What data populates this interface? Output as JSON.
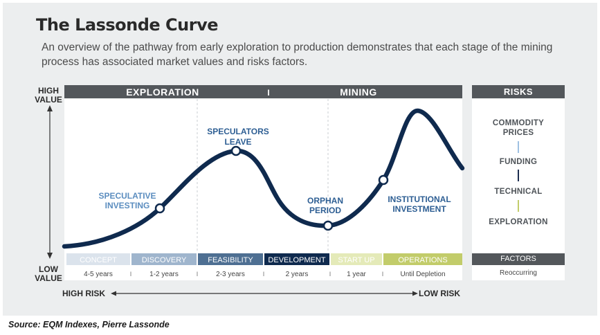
{
  "title": "The Lassonde Curve",
  "subtitle": "An overview of the pathway from early exploration to production demonstrates that each stage of the mining process has associated market values and risks factors.",
  "axis": {
    "high_value": [
      "HIGH",
      "VALUE"
    ],
    "low_value": [
      "LOW",
      "VALUE"
    ],
    "high_risk": "HIGH RISK",
    "low_risk": "LOW RISK"
  },
  "phases": {
    "exploration": "EXPLORATION",
    "divider": "I",
    "mining": "MINING"
  },
  "annotations": {
    "speculative_investing": [
      "SPECULATIVE",
      "INVESTING"
    ],
    "speculators_leave": [
      "SPECULATORS",
      "LEAVE"
    ],
    "orphan_period": [
      "ORPHAN",
      "PERIOD"
    ],
    "institutional_investment": [
      "INSTITUTIONAL",
      "INVESTMENT"
    ]
  },
  "stages": [
    {
      "label": "CONCEPT",
      "duration": "4-5 years",
      "color": "#dbe3ec",
      "text_color": "#ffffff"
    },
    {
      "label": "DISCOVERY",
      "duration": "1-2 years",
      "color": "#9fb5cd",
      "text_color": "#ffffff"
    },
    {
      "label": "FEASIBILITY",
      "duration": "2-3  years",
      "color": "#4e6f92",
      "text_color": "#ffffff"
    },
    {
      "label": "DEVELOPMENT",
      "duration": "2 years",
      "color": "#0f2a4e",
      "text_color": "#ffffff"
    },
    {
      "label": "START UP",
      "duration": "1 year",
      "color": "#e4eab8",
      "text_color": "#ffffff"
    },
    {
      "label": "OPERATIONS",
      "duration": "Until Depletion",
      "color": "#c2cc6a",
      "text_color": "#ffffff"
    }
  ],
  "duration_separator": "I",
  "risks": {
    "header": "RISKS",
    "items": [
      {
        "label": [
          "COMMODITY",
          "PRICES"
        ],
        "bar_color": "#9ec0e2"
      },
      {
        "label": [
          "FUNDING"
        ],
        "bar_color": "#1c2d4f"
      },
      {
        "label": [
          "TECHNICAL"
        ],
        "bar_color": "#c2cc6a"
      },
      {
        "label": [
          "EXPLORATION"
        ],
        "bar_color": null
      }
    ],
    "factors": "FACTORS",
    "reoccurring": "Reoccurring"
  },
  "colors": {
    "curve": "#0f2a4e",
    "header_bar": "#53575b",
    "annotation_light": "#5b8dbf",
    "annotation_dark": "#2d5e93"
  },
  "source": "Source: EQM Indexes, Pierre Lassonde"
}
